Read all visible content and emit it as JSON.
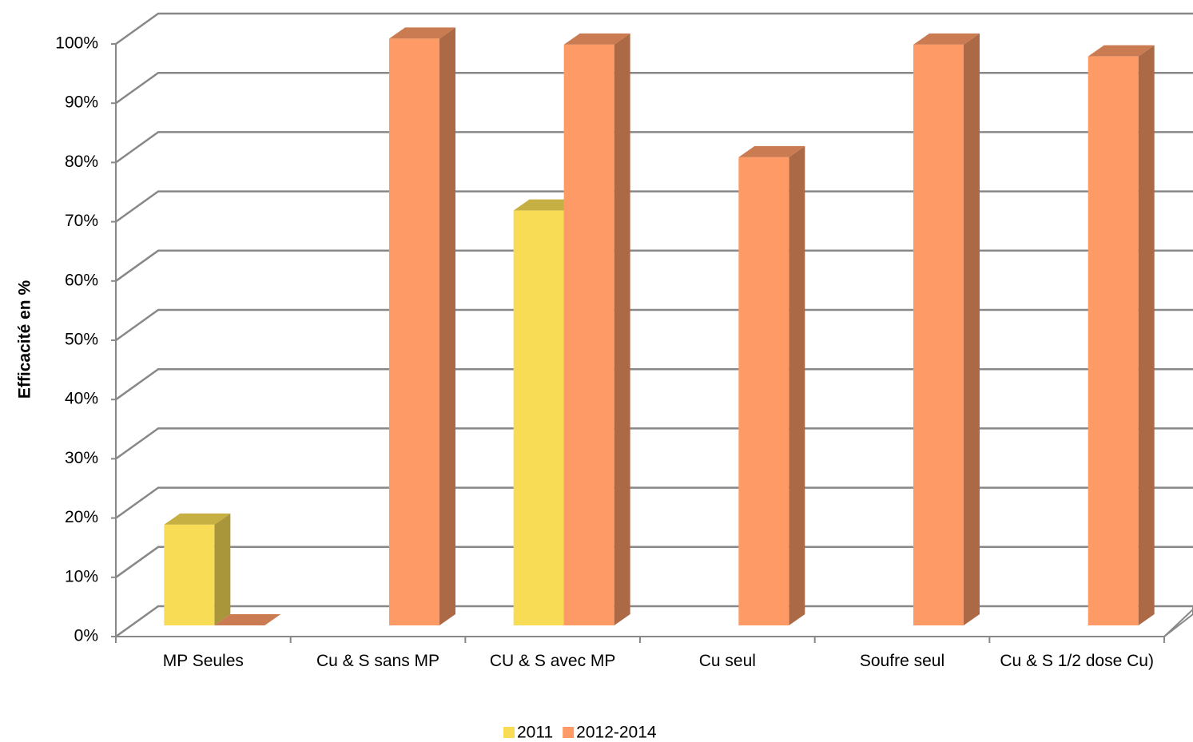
{
  "chart_data": {
    "type": "bar3d",
    "y_label": "Efficacité en %",
    "categories": [
      "MP Seules",
      "Cu & S sans MP",
      "CU & S avec MP",
      "Cu seul",
      "Soufre seul",
      "Cu & S 1/2 dose Cu)"
    ],
    "series": [
      {
        "name": "2011",
        "color": "#f8dc55",
        "values": [
          17,
          null,
          70,
          null,
          null,
          null
        ]
      },
      {
        "name": "2012-2014",
        "color": "#fd9a66",
        "values": [
          0,
          99,
          98,
          79,
          98,
          96
        ]
      }
    ],
    "ylim": [
      0,
      100
    ],
    "yticks": [
      {
        "value": 0,
        "label": "0%"
      },
      {
        "value": 10,
        "label": "10%"
      },
      {
        "value": 20,
        "label": "20%"
      },
      {
        "value": 30,
        "label": "30%"
      },
      {
        "value": 40,
        "label": "40%"
      },
      {
        "value": 50,
        "label": "50%"
      },
      {
        "value": 60,
        "label": "60%"
      },
      {
        "value": 70,
        "label": "70%"
      },
      {
        "value": 80,
        "label": "80%"
      },
      {
        "value": 90,
        "label": "90%"
      },
      {
        "value": 100,
        "label": "100%"
      }
    ],
    "grid": true,
    "legend": "bottom"
  }
}
